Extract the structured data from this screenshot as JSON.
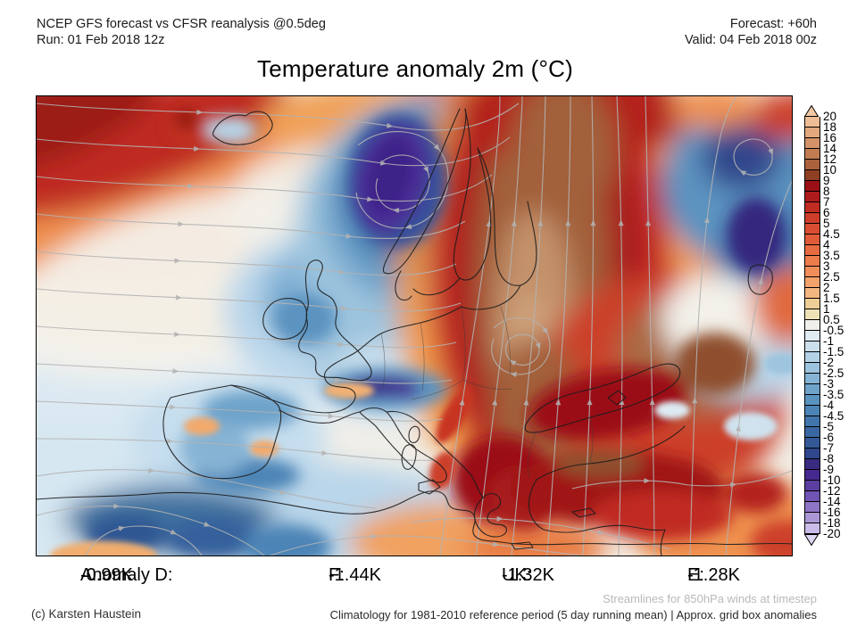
{
  "header": {
    "model_line": "NCEP GFS forecast vs CFSR reanalysis @0.5deg",
    "run_line": "Run: 01 Feb 2018 12z",
    "forecast_line": "Forecast: +60h",
    "valid_line": "Valid: 04 Feb 2018 00z"
  },
  "title": "Temperature anomaly 2m (°C)",
  "map": {
    "region": "Europe and North Atlantic",
    "field": "2m temperature anomaly",
    "streamline_color": "#b3b3b3",
    "coastline_color": "#1c1c1c"
  },
  "colorbar": {
    "unit": "°C",
    "triangle_top_color": "#f2c7a4",
    "triangle_bottom_color": "#ded5f1",
    "labels": [
      "20",
      "18",
      "16",
      "14",
      "12",
      "10",
      "9",
      "8",
      "7",
      "6",
      "5",
      "4.5",
      "4",
      "3.5",
      "3",
      "2.5",
      "2",
      "1.5",
      "1",
      "0.5",
      "-0.5",
      "-1",
      "-1.5",
      "-2",
      "-2.5",
      "-3",
      "-3.5",
      "-4",
      "-4.5",
      "-5",
      "-6",
      "-7",
      "-8",
      "-9",
      "-10",
      "-12",
      "-14",
      "-16",
      "-18",
      "-20"
    ],
    "cell_colors": [
      "#eebd95",
      "#e2a87e",
      "#d39268",
      "#c17c52",
      "#aa613c",
      "#8f3f24",
      "#9b1016",
      "#ad1b1d",
      "#c02b22",
      "#ce3d2a",
      "#d94e32",
      "#e05c38",
      "#e76b41",
      "#ed7c4c",
      "#f18d59",
      "#f4a26c",
      "#f4b680",
      "#efcd96",
      "#eee1b6",
      "#f0efec",
      "#dfeaf1",
      "#cbdfec",
      "#b4d2e6",
      "#9dc4de",
      "#86b3d4",
      "#6ea3ca",
      "#5b93c0",
      "#4c84b6",
      "#4275ab",
      "#3a67a1",
      "#345997",
      "#30478c",
      "#3a2b81",
      "#47288f",
      "#5c3ea1",
      "#7254b2",
      "#8d74c4",
      "#ab97d6",
      "#c9bce8"
    ]
  },
  "anomaly_row": {
    "items": [
      {
        "label": "Anomaly D:",
        "value": "-0.99K"
      },
      {
        "label": "F:",
        "value": "-1.44K"
      },
      {
        "label": "UK:",
        "value": "-1.32K"
      },
      {
        "label": "E:",
        "value": "-1.28K"
      }
    ]
  },
  "footer": {
    "streamline_note": "Streamlines for 850hPa winds at timestep",
    "climatology_note": "Climatology for 1981-2010 reference period (5 day running mean) | Approx. grid box anomalies",
    "copyright": "(c) Karsten Haustein"
  }
}
